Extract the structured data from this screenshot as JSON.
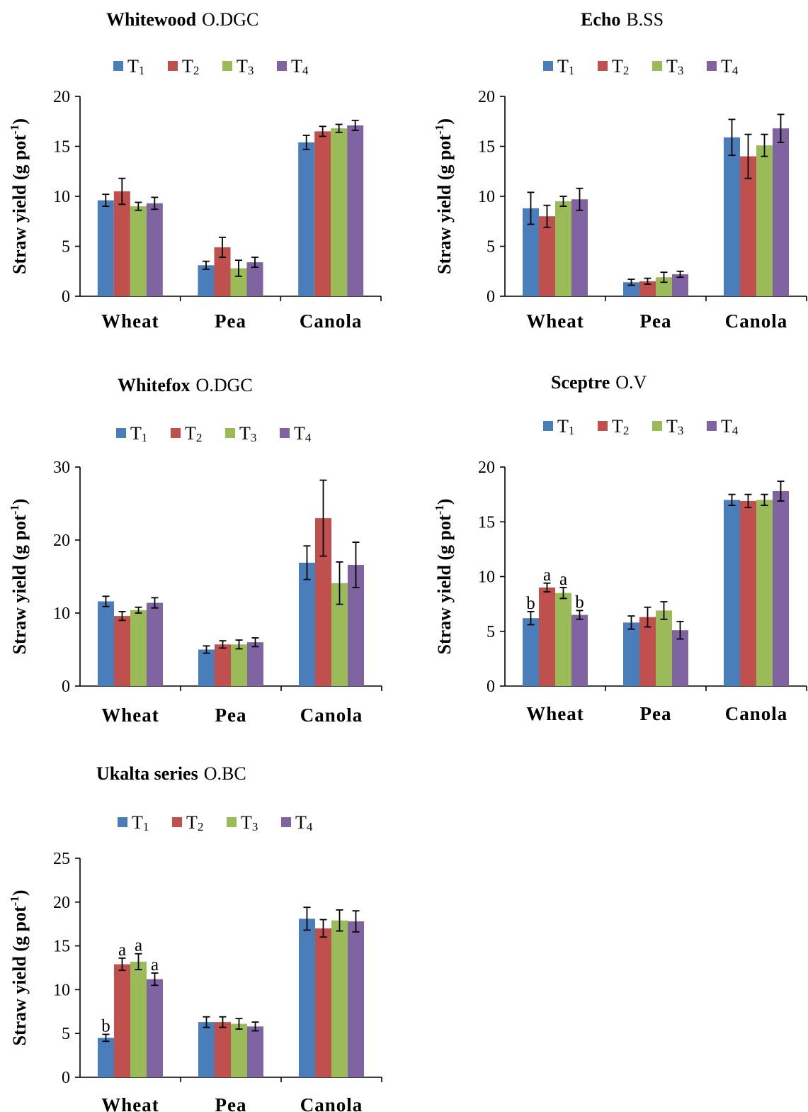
{
  "ylabel_main": "Straw yield (g pot",
  "ylabel_sup": "-1",
  "ylabel_close": ")",
  "colors": {
    "T1": "#4a7ebb",
    "T2": "#c0504d",
    "T3": "#9bbb59",
    "T4": "#8064a2"
  },
  "legend": [
    {
      "base": "T",
      "sub": "1"
    },
    {
      "base": "T",
      "sub": "2"
    },
    {
      "base": "T",
      "sub": "3"
    },
    {
      "base": "T",
      "sub": "4"
    }
  ],
  "chart_data": [
    {
      "type": "bar",
      "title_bold": "Whitewood",
      "title_regular": "O.DGC",
      "categories": [
        "Wheat",
        "Pea",
        "Canola"
      ],
      "ylim": [
        0,
        20
      ],
      "yticks": [
        0,
        5,
        10,
        15,
        20
      ],
      "series": [
        {
          "name": "T1",
          "values": [
            9.6,
            3.1,
            15.4
          ],
          "errors": [
            0.6,
            0.4,
            0.7
          ]
        },
        {
          "name": "T2",
          "values": [
            10.5,
            4.9,
            16.5
          ],
          "errors": [
            1.3,
            1.0,
            0.5
          ]
        },
        {
          "name": "T3",
          "values": [
            9.0,
            2.8,
            16.8
          ],
          "errors": [
            0.4,
            0.8,
            0.4
          ]
        },
        {
          "name": "T4",
          "values": [
            9.3,
            3.4,
            17.1
          ],
          "errors": [
            0.6,
            0.5,
            0.5
          ]
        }
      ],
      "annotations": []
    },
    {
      "type": "bar",
      "title_bold": "Echo",
      "title_regular": "B.SS",
      "categories": [
        "Wheat",
        "Pea",
        "Canola"
      ],
      "ylim": [
        0,
        20
      ],
      "yticks": [
        0,
        5,
        10,
        15,
        20
      ],
      "series": [
        {
          "name": "T1",
          "values": [
            8.8,
            1.4,
            15.9
          ],
          "errors": [
            1.6,
            0.3,
            1.8
          ]
        },
        {
          "name": "T2",
          "values": [
            8.0,
            1.5,
            14.0
          ],
          "errors": [
            1.1,
            0.3,
            2.2
          ]
        },
        {
          "name": "T3",
          "values": [
            9.5,
            1.9,
            15.1
          ],
          "errors": [
            0.5,
            0.5,
            1.1
          ]
        },
        {
          "name": "T4",
          "values": [
            9.7,
            2.2,
            16.8
          ],
          "errors": [
            1.1,
            0.3,
            1.4
          ]
        }
      ],
      "annotations": []
    },
    {
      "type": "bar",
      "title_bold": "Whitefox",
      "title_regular": "O.DGC",
      "categories": [
        "Wheat",
        "Pea",
        "Canola"
      ],
      "ylim": [
        0,
        30
      ],
      "yticks": [
        0,
        10,
        20,
        30
      ],
      "series": [
        {
          "name": "T1",
          "values": [
            11.6,
            5.0,
            16.9
          ],
          "errors": [
            0.7,
            0.5,
            2.3
          ]
        },
        {
          "name": "T2",
          "values": [
            9.6,
            5.7,
            23.0
          ],
          "errors": [
            0.6,
            0.5,
            5.2
          ]
        },
        {
          "name": "T3",
          "values": [
            10.4,
            5.7,
            14.1
          ],
          "errors": [
            0.4,
            0.6,
            2.9
          ]
        },
        {
          "name": "T4",
          "values": [
            11.4,
            6.0,
            16.6
          ],
          "errors": [
            0.7,
            0.6,
            3.1
          ]
        }
      ],
      "annotations": []
    },
    {
      "type": "bar",
      "title_bold": "Sceptre",
      "title_regular": "O.V",
      "categories": [
        "Wheat",
        "Pea",
        "Canola"
      ],
      "ylim": [
        0,
        20
      ],
      "yticks": [
        0,
        5,
        10,
        15,
        20
      ],
      "series": [
        {
          "name": "T1",
          "values": [
            6.2,
            5.8,
            17.0
          ],
          "errors": [
            0.6,
            0.6,
            0.5
          ]
        },
        {
          "name": "T2",
          "values": [
            9.0,
            6.3,
            16.9
          ],
          "errors": [
            0.4,
            0.9,
            0.6
          ]
        },
        {
          "name": "T3",
          "values": [
            8.5,
            6.9,
            17.0
          ],
          "errors": [
            0.5,
            0.8,
            0.5
          ]
        },
        {
          "name": "T4",
          "values": [
            6.5,
            5.1,
            17.8
          ],
          "errors": [
            0.4,
            0.8,
            0.9
          ]
        }
      ],
      "annotations": [
        {
          "category": 0,
          "series": 0,
          "text": "b"
        },
        {
          "category": 0,
          "series": 1,
          "text": "a"
        },
        {
          "category": 0,
          "series": 2,
          "text": "a"
        },
        {
          "category": 0,
          "series": 3,
          "text": "b"
        }
      ]
    },
    {
      "type": "bar",
      "title_bold": "Ukalta series",
      "title_regular": "O.BC",
      "categories": [
        "Wheat",
        "Pea",
        "Canola"
      ],
      "ylim": [
        0,
        25
      ],
      "yticks": [
        0,
        5,
        10,
        15,
        20,
        25
      ],
      "series": [
        {
          "name": "T1",
          "values": [
            4.5,
            6.3,
            18.1
          ],
          "errors": [
            0.4,
            0.6,
            1.3
          ]
        },
        {
          "name": "T2",
          "values": [
            12.9,
            6.3,
            17.0
          ],
          "errors": [
            0.7,
            0.6,
            1.0
          ]
        },
        {
          "name": "T3",
          "values": [
            13.2,
            6.1,
            17.9
          ],
          "errors": [
            0.9,
            0.6,
            1.2
          ]
        },
        {
          "name": "T4",
          "values": [
            11.2,
            5.8,
            17.8
          ],
          "errors": [
            0.7,
            0.5,
            1.2
          ]
        }
      ],
      "annotations": [
        {
          "category": 0,
          "series": 0,
          "text": "b"
        },
        {
          "category": 0,
          "series": 1,
          "text": "a"
        },
        {
          "category": 0,
          "series": 2,
          "text": "a"
        },
        {
          "category": 0,
          "series": 3,
          "text": "a"
        }
      ]
    }
  ]
}
